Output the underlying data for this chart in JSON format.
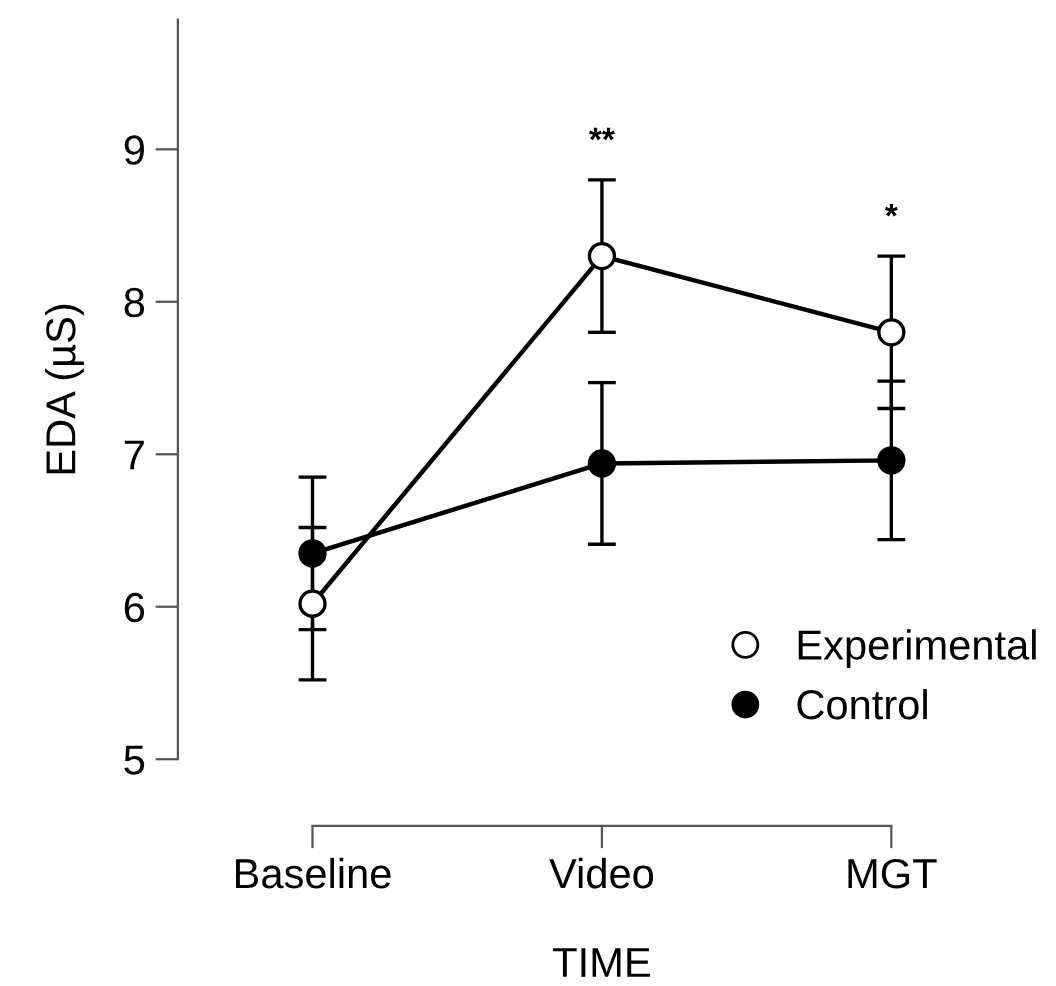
{
  "chart_data": {
    "type": "line",
    "xlabel": "TIME",
    "ylabel": "EDA (µS)",
    "categories": [
      "Baseline",
      "Video",
      "MGT"
    ],
    "ylim": [
      5,
      9.85
    ],
    "yticks": [
      5,
      6,
      7,
      8,
      9
    ],
    "marker": "circle",
    "line_style": "solid",
    "legend": "bottom right",
    "grid": false,
    "series": [
      {
        "name": "Experimental",
        "color": "#000000",
        "colors": [
          "#ffffff",
          "#ffffff",
          "#ffffff"
        ],
        "values": [
          6.02,
          8.3,
          7.8
        ],
        "errors": [
          0.5,
          0.5,
          0.5
        ]
      },
      {
        "name": "Control",
        "color": "#000000",
        "values": [
          6.35,
          6.94,
          6.96
        ],
        "errors": [
          0.5,
          0.53,
          0.52
        ]
      }
    ],
    "annotations": [
      "**",
      "*"
    ]
  }
}
